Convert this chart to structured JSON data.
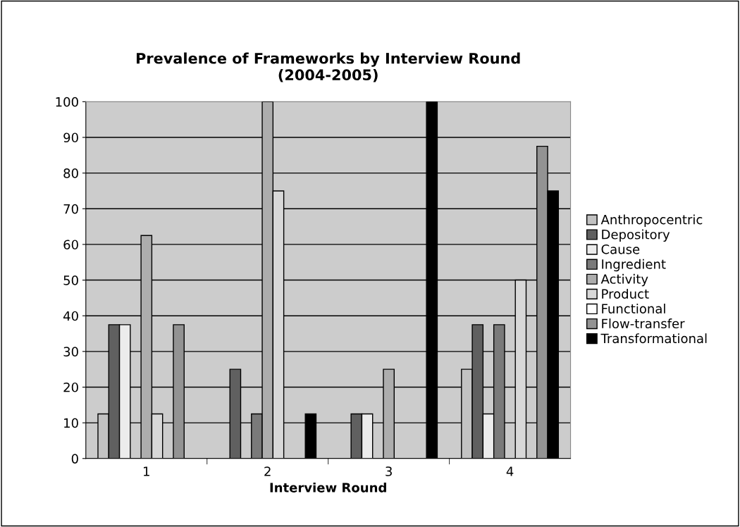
{
  "chart_data": {
    "type": "bar",
    "title": "Prevalence of Frameworks by Interview Round\n(2004-2005)",
    "xlabel": "Interview Round",
    "categories": [
      "1",
      "2",
      "3",
      "4"
    ],
    "series": [
      {
        "name": "Anthropocentric",
        "color": "#c2c2c2",
        "values": [
          12.5,
          null,
          null,
          25
        ]
      },
      {
        "name": "Depository",
        "color": "#606060",
        "values": [
          37.5,
          25,
          12.5,
          37.5
        ]
      },
      {
        "name": "Cause",
        "color": "#ececec",
        "values": [
          37.5,
          null,
          12.5,
          12.5
        ]
      },
      {
        "name": "Ingredient",
        "color": "#7a7a7a",
        "values": [
          null,
          12.5,
          null,
          37.5
        ]
      },
      {
        "name": "Activity",
        "color": "#adadad",
        "values": [
          62.5,
          100,
          25,
          null
        ]
      },
      {
        "name": "Product",
        "color": "#d8d8d8",
        "values": [
          12.5,
          75,
          null,
          50
        ]
      },
      {
        "name": "Functional",
        "color": "#ffffff",
        "values": [
          null,
          null,
          null,
          null
        ]
      },
      {
        "name": "Flow-transfer",
        "color": "#939393",
        "values": [
          37.5,
          null,
          null,
          87.5
        ]
      },
      {
        "name": "Transformational",
        "color": "#000000",
        "values": [
          null,
          12.5,
          100,
          75
        ]
      }
    ],
    "ylim": [
      0,
      100
    ],
    "yticks": [
      0,
      10,
      20,
      30,
      40,
      50,
      60,
      70,
      80,
      90,
      100
    ],
    "grid": "y",
    "legend": "right"
  }
}
